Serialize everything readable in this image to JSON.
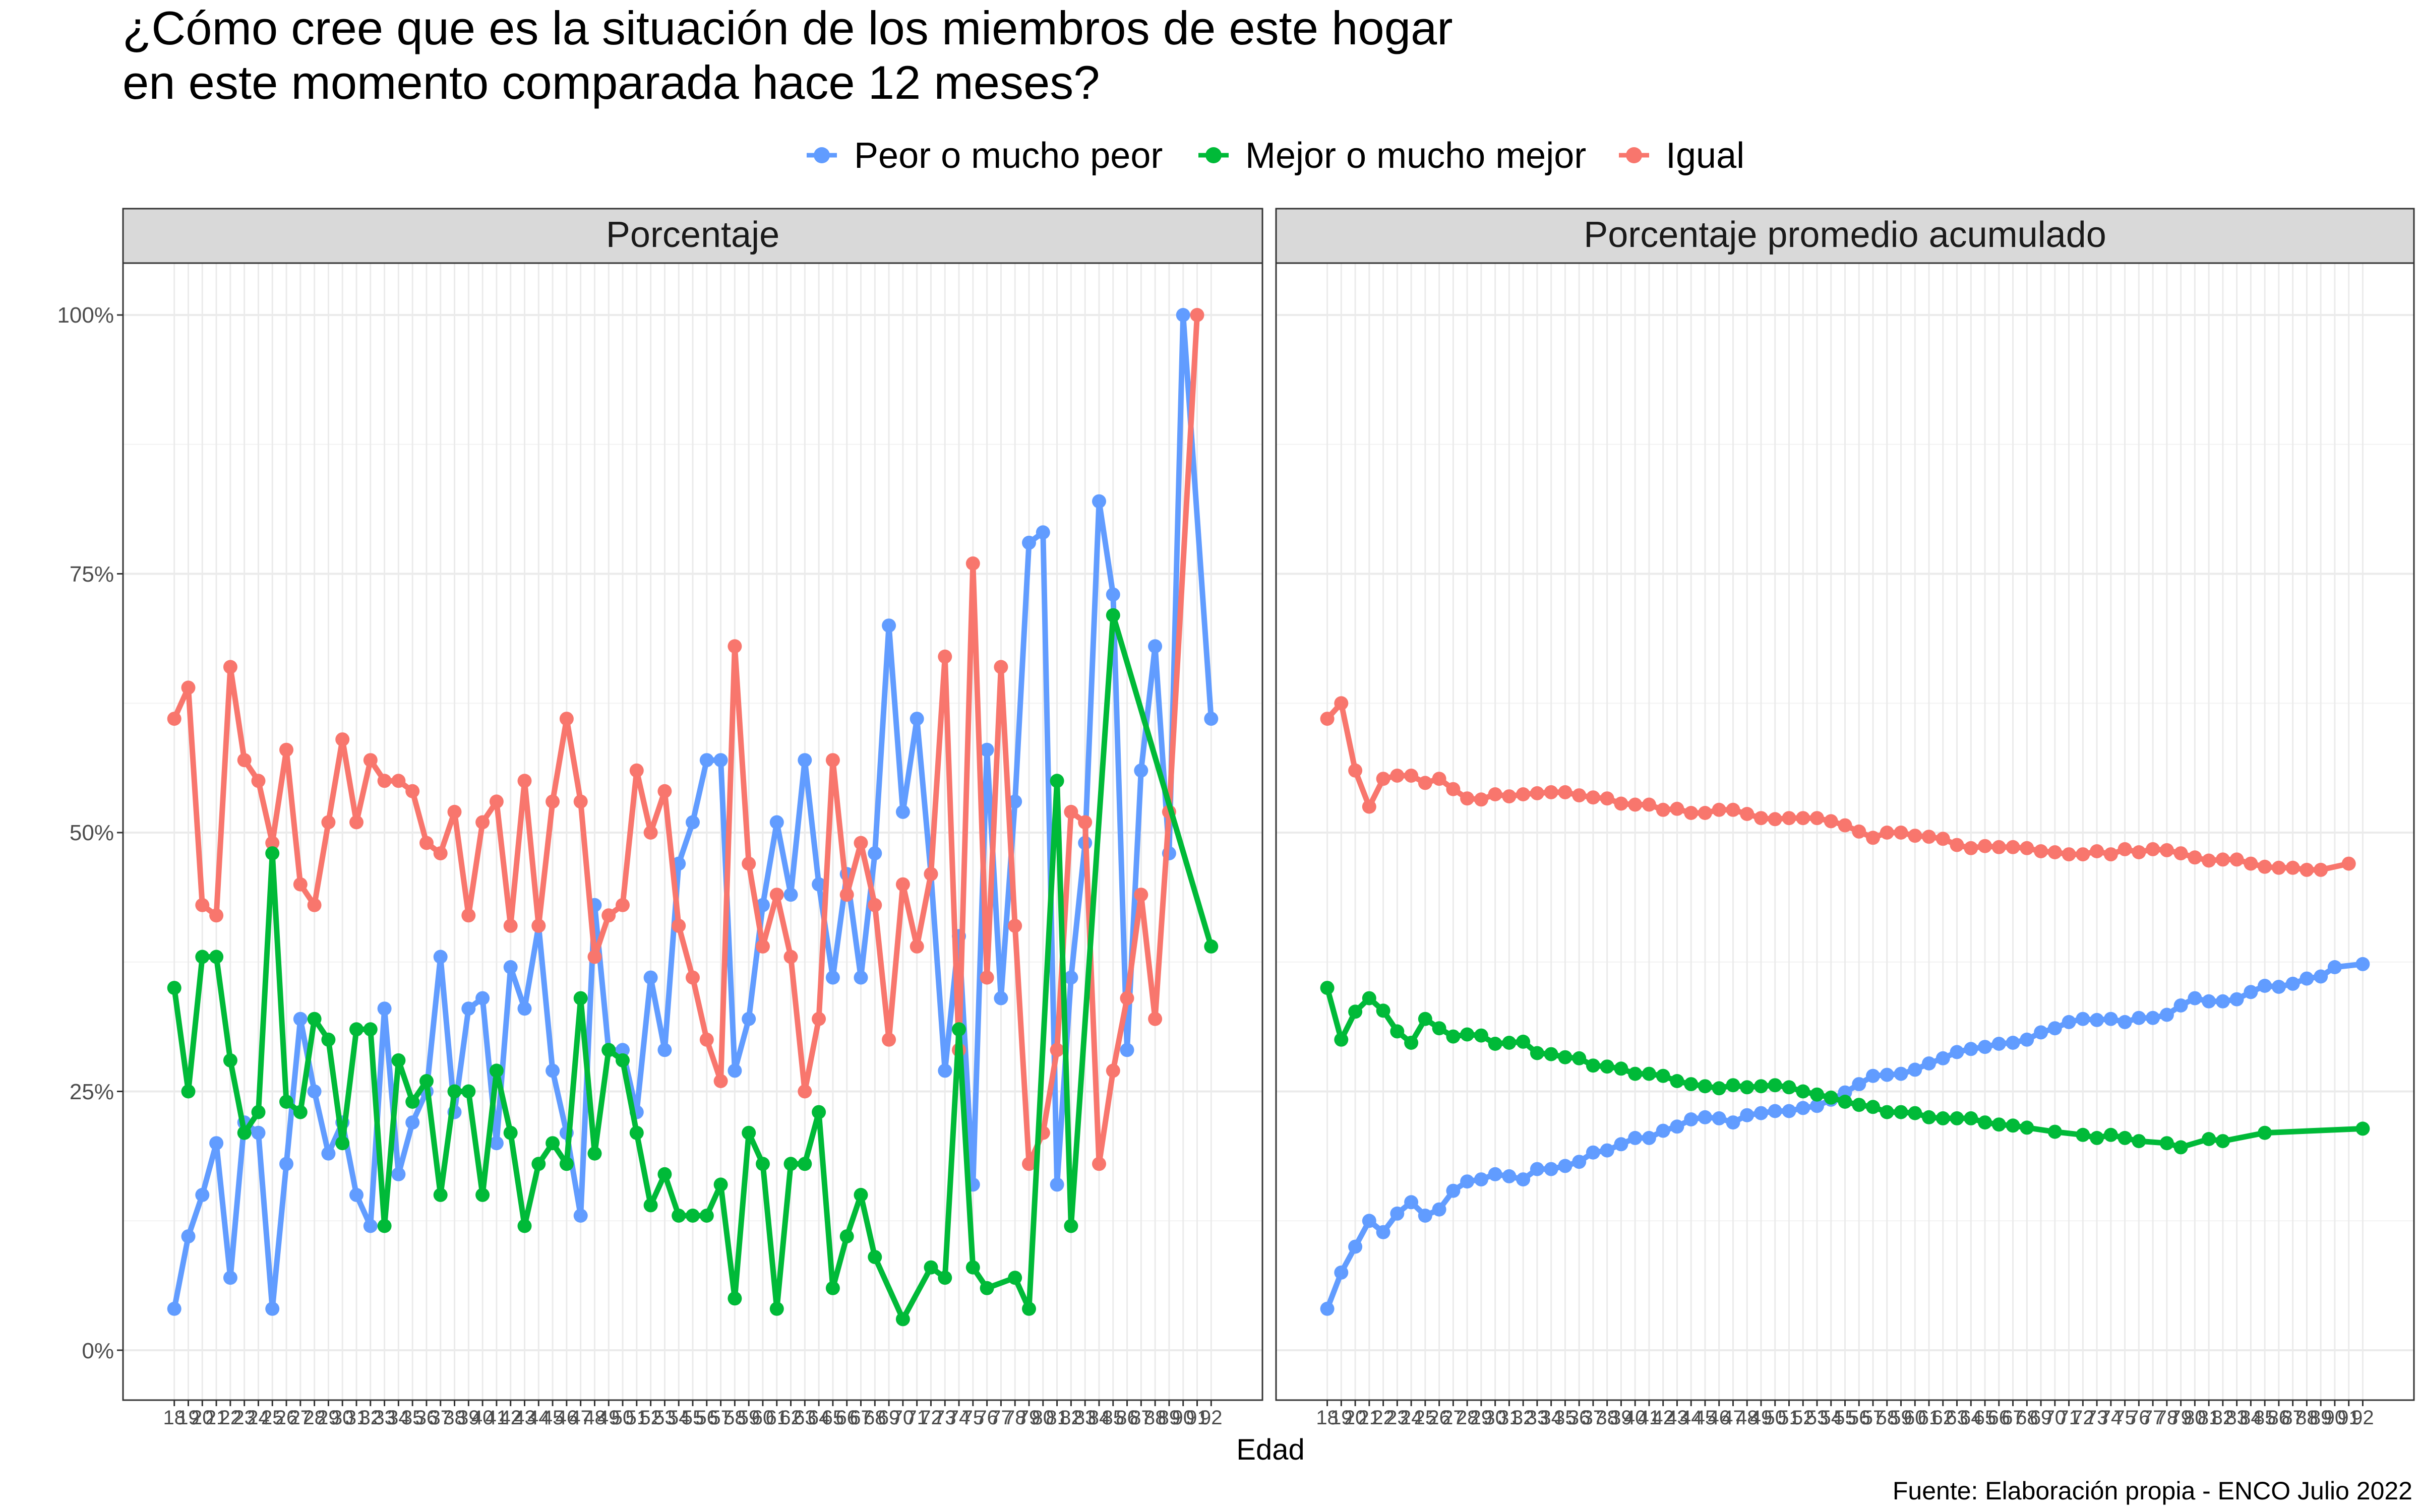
{
  "chart_data": {
    "type": "line",
    "title_lines": [
      "¿Cómo cree que es la situación de los miembros de este hogar",
      "en este momento comparada hace 12 meses?"
    ],
    "xlabel": "Edad",
    "caption": "Fuente: Elaboración propia - ENCO Julio 2022",
    "ylim": [
      0,
      1
    ],
    "y_ticks": [
      0,
      0.25,
      0.5,
      0.75,
      1
    ],
    "y_tick_labels": [
      "0%",
      "25%",
      "50%",
      "75%",
      "100%"
    ],
    "legend_position": "top",
    "grid": true,
    "x": [
      18,
      19,
      20,
      21,
      22,
      23,
      24,
      25,
      26,
      27,
      28,
      29,
      30,
      31,
      32,
      33,
      34,
      35,
      36,
      37,
      38,
      39,
      40,
      41,
      42,
      43,
      44,
      45,
      46,
      47,
      48,
      49,
      50,
      51,
      52,
      53,
      54,
      55,
      56,
      57,
      58,
      59,
      60,
      61,
      62,
      63,
      64,
      65,
      66,
      67,
      68,
      69,
      70,
      71,
      72,
      73,
      74,
      75,
      76,
      77,
      78,
      79,
      80,
      81,
      82,
      83,
      84,
      85,
      86,
      87,
      88,
      89,
      90,
      91,
      92
    ],
    "series": [
      {
        "name": "Peor o mucho peor",
        "color": "#619CFF"
      },
      {
        "name": "Mejor o mucho mejor",
        "color": "#00BA38"
      },
      {
        "name": "Igual",
        "color": "#F8766D"
      }
    ],
    "panels": [
      {
        "label": "Porcentaje",
        "x_min": 18,
        "x_max": 92,
        "values": [
          [
            0.04,
            0.11,
            0.15,
            0.2,
            0.07,
            0.22,
            0.21,
            0.04,
            0.18,
            0.32,
            0.25,
            0.19,
            0.22,
            0.15,
            0.12,
            0.33,
            0.17,
            0.22,
            0.25,
            0.38,
            0.23,
            0.33,
            0.34,
            0.2,
            0.37,
            0.33,
            0.41,
            0.27,
            0.21,
            0.13,
            0.43,
            0.29,
            0.29,
            0.23,
            0.36,
            0.29,
            0.47,
            0.51,
            0.57,
            0.57,
            0.27,
            0.32,
            0.43,
            0.51,
            0.44,
            0.57,
            0.45,
            0.36,
            0.46,
            0.36,
            0.48,
            0.7,
            0.52,
            0.61,
            0.46,
            0.27,
            0.4,
            0.16,
            0.58,
            0.34,
            0.53,
            0.78,
            0.79,
            0.16,
            0.36,
            0.49,
            0.82,
            0.73,
            0.29,
            0.56,
            0.68,
            0.48,
            1.0,
            null,
            0.61
          ],
          [
            0.35,
            0.25,
            0.38,
            0.38,
            0.28,
            0.21,
            0.23,
            0.48,
            0.24,
            0.23,
            0.32,
            0.3,
            0.2,
            0.31,
            0.31,
            0.12,
            0.28,
            0.24,
            0.26,
            0.15,
            0.25,
            0.25,
            0.15,
            0.27,
            0.21,
            0.12,
            0.18,
            0.2,
            0.18,
            0.34,
            0.19,
            0.29,
            0.28,
            0.21,
            0.14,
            0.17,
            0.13,
            0.13,
            0.13,
            0.16,
            0.05,
            0.21,
            0.18,
            0.04,
            0.18,
            0.18,
            0.23,
            0.06,
            0.11,
            0.15,
            0.09,
            null,
            0.03,
            null,
            0.08,
            0.07,
            0.31,
            0.08,
            0.06,
            null,
            0.07,
            0.04,
            null,
            0.55,
            0.12,
            null,
            null,
            0.71,
            null,
            null,
            null,
            null,
            null,
            null,
            0.39
          ],
          [
            0.61,
            0.64,
            0.43,
            0.42,
            0.66,
            0.57,
            0.55,
            0.49,
            0.58,
            0.45,
            0.43,
            0.51,
            0.59,
            0.51,
            0.57,
            0.55,
            0.55,
            0.54,
            0.49,
            0.48,
            0.52,
            0.42,
            0.51,
            0.53,
            0.41,
            0.55,
            0.41,
            0.53,
            0.61,
            0.53,
            0.38,
            0.42,
            0.43,
            0.56,
            0.5,
            0.54,
            0.41,
            0.36,
            0.3,
            0.26,
            0.68,
            0.47,
            0.39,
            0.44,
            0.38,
            0.25,
            0.32,
            0.57,
            0.44,
            0.49,
            0.43,
            0.3,
            0.45,
            0.39,
            0.46,
            0.67,
            0.29,
            0.76,
            0.36,
            0.66,
            0.41,
            0.18,
            0.21,
            0.29,
            0.52,
            0.51,
            0.18,
            0.27,
            0.34,
            0.44,
            0.32,
            0.52,
            null,
            1.0,
            null
          ]
        ]
      },
      {
        "label": "Porcentaje promedio acumulado",
        "x_min": 18,
        "x_max": 92,
        "values": [
          [
            0.04,
            0.075,
            0.1,
            0.125,
            0.114,
            0.132,
            0.143,
            0.13,
            0.136,
            0.154,
            0.163,
            0.165,
            0.17,
            0.168,
            0.165,
            0.175,
            0.175,
            0.178,
            0.182,
            0.191,
            0.193,
            0.199,
            0.205,
            0.205,
            0.212,
            0.216,
            0.223,
            0.225,
            0.224,
            0.22,
            0.227,
            0.229,
            0.231,
            0.231,
            0.234,
            0.236,
            0.242,
            0.249,
            0.257,
            0.265,
            0.266,
            0.267,
            0.271,
            0.277,
            0.282,
            0.288,
            0.291,
            0.293,
            0.296,
            0.297,
            0.3,
            0.307,
            0.311,
            0.317,
            0.32,
            0.319,
            0.32,
            0.317,
            0.321,
            0.321,
            0.324,
            0.333,
            0.34,
            0.337,
            0.337,
            0.339,
            0.346,
            0.352,
            0.351,
            0.354,
            0.359,
            0.361,
            0.37,
            null,
            0.373
          ],
          [
            0.35,
            0.3,
            0.327,
            0.34,
            0.328,
            0.308,
            0.297,
            0.32,
            0.311,
            0.303,
            0.305,
            0.304,
            0.296,
            0.297,
            0.298,
            0.287,
            0.286,
            0.283,
            0.282,
            0.275,
            0.274,
            0.272,
            0.267,
            0.267,
            0.265,
            0.26,
            0.257,
            0.255,
            0.253,
            0.256,
            0.254,
            0.255,
            0.256,
            0.254,
            0.25,
            0.247,
            0.244,
            0.24,
            0.237,
            0.235,
            0.23,
            0.23,
            0.229,
            0.225,
            0.224,
            0.224,
            0.224,
            0.22,
            0.218,
            0.217,
            0.215,
            null,
            0.211,
            null,
            0.208,
            0.205,
            0.208,
            0.205,
            0.202,
            null,
            0.2,
            0.196,
            null,
            0.204,
            0.202,
            null,
            null,
            0.21,
            null,
            null,
            null,
            null,
            null,
            null,
            0.214
          ],
          [
            0.61,
            0.625,
            0.56,
            0.525,
            0.552,
            0.555,
            0.555,
            0.548,
            0.552,
            0.542,
            0.533,
            0.532,
            0.537,
            0.535,
            0.537,
            0.538,
            0.539,
            0.539,
            0.536,
            0.534,
            0.533,
            0.528,
            0.527,
            0.527,
            0.522,
            0.523,
            0.519,
            0.519,
            0.522,
            0.522,
            0.518,
            0.514,
            0.513,
            0.514,
            0.514,
            0.514,
            0.511,
            0.507,
            0.501,
            0.495,
            0.5,
            0.5,
            0.497,
            0.496,
            0.494,
            0.488,
            0.485,
            0.487,
            0.486,
            0.486,
            0.485,
            0.482,
            0.481,
            0.479,
            0.479,
            0.482,
            0.479,
            0.484,
            0.481,
            0.484,
            0.483,
            0.48,
            0.476,
            0.473,
            0.474,
            0.474,
            0.47,
            0.467,
            0.466,
            0.466,
            0.464,
            0.464,
            null,
            0.47,
            null
          ]
        ]
      }
    ]
  }
}
